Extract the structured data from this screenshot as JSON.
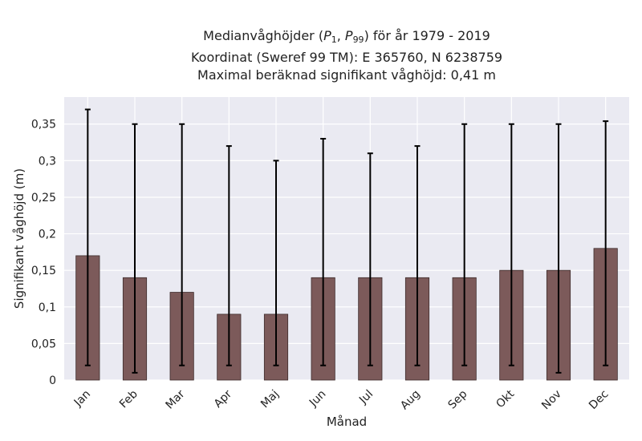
{
  "chart_data": {
    "type": "bar",
    "title_prefix": "Medianvåghöjder (",
    "title_p": "P",
    "title_sub1": "1",
    "title_sep": ", ",
    "title_sub2": "99",
    "title_suffix": ") för år 1979 - 2019",
    "title_line2": "Koordinat (Sweref 99 TM): E 365760, N 6238759",
    "title_line3": "Maximal beräknad signifikant våghöjd: 0,41 m",
    "xlabel": "Månad",
    "ylabel": "Signifikant våghöjd (m)",
    "categories": [
      "Jan",
      "Feb",
      "Mar",
      "Apr",
      "Maj",
      "Jun",
      "Jul",
      "Aug",
      "Sep",
      "Okt",
      "Nov",
      "Dec"
    ],
    "values": [
      0.17,
      0.14,
      0.12,
      0.09,
      0.09,
      0.14,
      0.14,
      0.14,
      0.14,
      0.15,
      0.15,
      0.18
    ],
    "p1": [
      0.02,
      0.01,
      0.02,
      0.02,
      0.02,
      0.02,
      0.02,
      0.02,
      0.02,
      0.02,
      0.01,
      0.02
    ],
    "p99": [
      0.37,
      0.35,
      0.35,
      0.32,
      0.3,
      0.33,
      0.31,
      0.32,
      0.35,
      0.35,
      0.35,
      0.354
    ],
    "ylim": [
      0,
      0.387
    ],
    "yticks": [
      0,
      0.05,
      0.1,
      0.15,
      0.2,
      0.25,
      0.3,
      0.35
    ],
    "ytick_labels": [
      "0",
      "0,05",
      "0,1",
      "0,15",
      "0,2",
      "0,25",
      "0,3",
      "0,35"
    ],
    "grid": true,
    "colors": {
      "bar": "#7c5a5a",
      "bar_edge": "#3d2b2b",
      "error": "#000000",
      "plot_bg": "#eaeaf2",
      "grid": "#ffffff"
    }
  }
}
